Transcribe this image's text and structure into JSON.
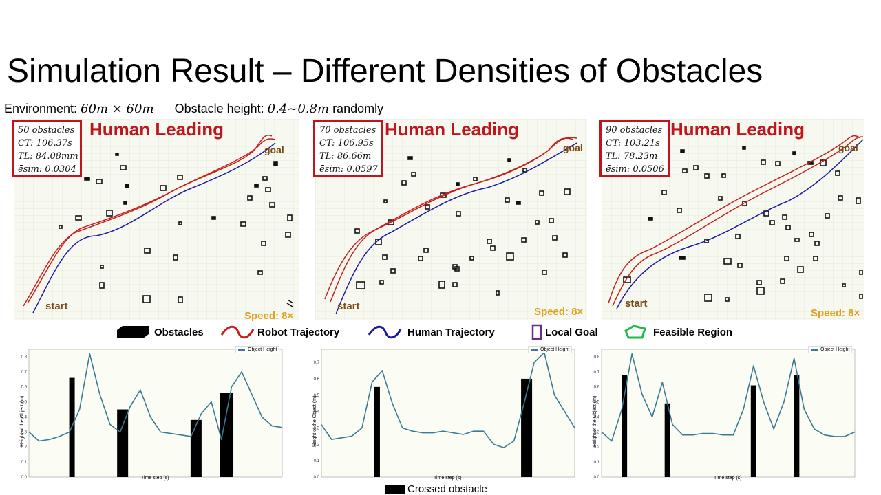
{
  "title": "Simulation Result – Different Densities of Obstacles",
  "environment": {
    "env_label": "Environment: ",
    "env_value": "60m × 60m",
    "height_label": "Obstacle height: ",
    "height_value": "0.4~0.8m",
    "height_suffix": " randomly"
  },
  "panels": [
    {
      "obstacles": "50 obstacles",
      "ct": "CT: 106.37s",
      "tl": "TL: 84.08mm",
      "esim": "ēsim: 0.0304",
      "heading": "Human Leading",
      "goal": "goal",
      "start": "start",
      "speed": "Speed: 8×"
    },
    {
      "obstacles": "70 obstacles",
      "ct": "CT: 106.95s",
      "tl": "TL: 86.66m",
      "esim": "ēsim: 0.0597",
      "heading": "Human Leading",
      "goal": "goal",
      "start": "start",
      "speed": "Speed: 8×"
    },
    {
      "obstacles": "90 obstacles",
      "ct": "CT: 103.21s",
      "tl": "TL: 78.23m",
      "esim": "ēsim: 0.0506",
      "heading": "Human Leading",
      "goal": "goal",
      "start": "start",
      "speed": "Speed: 8×"
    }
  ],
  "legend": {
    "obstacles": "Obstacles",
    "robot": "Robot Trajectory",
    "human": "Human Trajectory",
    "local_goal": "Local Goal",
    "feasible": "Feasible Region"
  },
  "colors": {
    "accent_red": "#c0151c",
    "robot_red": "#c41e1e",
    "human_blue": "#1a1aa0",
    "local_goal_purple": "#6a2b8c",
    "feasible_green": "#22bb44",
    "plot_line": "#3a7a94",
    "speed_gold": "#e0a020"
  },
  "crossed_label": "Crossed obstacle",
  "chart_data": [
    {
      "type": "line",
      "series": [
        {
          "name": "Object Height",
          "x": [
            0,
            4,
            8,
            12,
            16,
            20,
            24,
            28,
            32,
            36,
            40,
            44,
            48,
            52,
            56,
            60,
            64,
            68,
            72,
            76,
            80,
            84,
            88,
            92,
            96,
            100
          ],
          "values": [
            0.3,
            0.24,
            0.25,
            0.27,
            0.3,
            0.45,
            0.82,
            0.55,
            0.35,
            0.3,
            0.47,
            0.58,
            0.4,
            0.3,
            0.29,
            0.28,
            0.27,
            0.42,
            0.5,
            0.25,
            0.6,
            0.7,
            0.55,
            0.4,
            0.34,
            0.33
          ]
        }
      ],
      "bars": [
        {
          "x": 17,
          "value": 0.66
        },
        {
          "x": 37,
          "value": 0.45
        },
        {
          "x": 66,
          "value": 0.38
        },
        {
          "x": 78,
          "value": 0.56
        }
      ],
      "ylabel": "Height of the Object (m)",
      "xlabel": "Time step (s)",
      "ylim": [
        0,
        0.85
      ],
      "yticks": [
        "0.0",
        "0.1",
        "0.2",
        "0.3",
        "0.4",
        "0.5",
        "0.6",
        "0.7",
        "0.8"
      ]
    },
    {
      "type": "line",
      "series": [
        {
          "name": "Object Height",
          "x": [
            0,
            4,
            8,
            12,
            16,
            20,
            24,
            28,
            32,
            36,
            40,
            44,
            48,
            52,
            56,
            60,
            64,
            68,
            72,
            76,
            80,
            84,
            88,
            92,
            96,
            100
          ],
          "values": [
            0.32,
            0.23,
            0.24,
            0.25,
            0.3,
            0.58,
            0.65,
            0.45,
            0.3,
            0.28,
            0.27,
            0.27,
            0.28,
            0.27,
            0.26,
            0.28,
            0.28,
            0.2,
            0.18,
            0.22,
            0.45,
            0.7,
            0.76,
            0.5,
            0.4,
            0.3
          ]
        }
      ],
      "bars": [
        {
          "x": 22,
          "value": 0.55
        },
        {
          "x": 81,
          "value": 0.6
        }
      ],
      "ylabel": "Height of the Object (m)",
      "xlabel": "Time step (s)",
      "ylim": [
        0,
        0.78
      ],
      "yticks": [
        "0.0",
        "0.1",
        "0.2",
        "0.3",
        "0.4",
        "0.5",
        "0.6",
        "0.7"
      ]
    },
    {
      "type": "line",
      "series": [
        {
          "name": "Object Height",
          "x": [
            0,
            4,
            8,
            12,
            16,
            20,
            24,
            28,
            32,
            36,
            40,
            44,
            48,
            52,
            56,
            60,
            64,
            68,
            72,
            76,
            80,
            84,
            88,
            92,
            96,
            100
          ],
          "values": [
            0.3,
            0.24,
            0.45,
            0.82,
            0.55,
            0.4,
            0.63,
            0.35,
            0.28,
            0.28,
            0.29,
            0.29,
            0.28,
            0.28,
            0.45,
            0.74,
            0.5,
            0.32,
            0.5,
            0.79,
            0.45,
            0.32,
            0.28,
            0.27,
            0.27,
            0.3
          ]
        }
      ],
      "bars": [
        {
          "x": 9,
          "value": 0.68
        },
        {
          "x": 26,
          "value": 0.49
        },
        {
          "x": 60,
          "value": 0.61
        },
        {
          "x": 77,
          "value": 0.68
        }
      ],
      "ylabel": "Height of the Object (m)",
      "xlabel": "Time step (s)",
      "ylim": [
        0,
        0.85
      ],
      "yticks": [
        "0.0",
        "0.1",
        "0.2",
        "0.3",
        "0.4",
        "0.5",
        "0.6",
        "0.7",
        "0.8"
      ]
    }
  ]
}
